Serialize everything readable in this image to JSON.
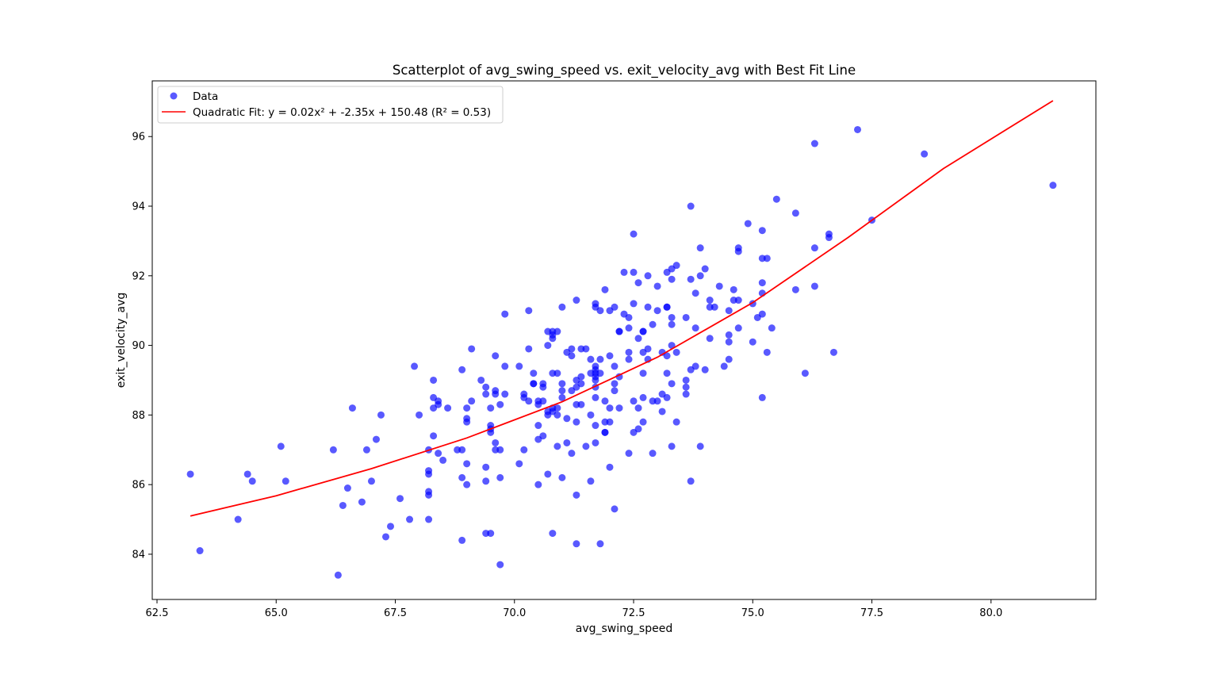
{
  "chart_data": {
    "type": "scatter",
    "title": "Scatterplot of avg_swing_speed vs. exit_velocity_avg with Best Fit Line",
    "xlabel": "avg_swing_speed",
    "ylabel": "exit_velocity_avg",
    "xlim": [
      62.4,
      82.2
    ],
    "ylim": [
      82.7,
      97.6
    ],
    "xticks": [
      62.5,
      65.0,
      67.5,
      70.0,
      72.5,
      75.0,
      77.5,
      80.0
    ],
    "xtick_labels": [
      "62.5",
      "65.0",
      "67.5",
      "70.0",
      "72.5",
      "75.0",
      "77.5",
      "80.0"
    ],
    "yticks": [
      84,
      86,
      88,
      90,
      92,
      94,
      96
    ],
    "ytick_labels": [
      "84",
      "86",
      "88",
      "90",
      "92",
      "94",
      "96"
    ],
    "grid": false,
    "legend": {
      "placement": "top-left",
      "entries": [
        {
          "label": "Data",
          "marker": "circle",
          "color": "#0000ff"
        },
        {
          "label": "Quadratic Fit: y = 0.02x² + -2.35x + 150.48 (R² = 0.53)",
          "marker": "line",
          "color": "#ff0000"
        }
      ]
    },
    "series": [
      {
        "name": "Data",
        "kind": "scatter",
        "color": "#0000ff",
        "alpha": 0.65,
        "points": [
          [
            63.2,
            86.3
          ],
          [
            63.4,
            84.1
          ],
          [
            64.2,
            85.0
          ],
          [
            64.4,
            86.3
          ],
          [
            64.5,
            86.1
          ],
          [
            65.1,
            87.1
          ],
          [
            65.2,
            86.1
          ],
          [
            66.2,
            87.0
          ],
          [
            66.3,
            83.4
          ],
          [
            66.4,
            85.4
          ],
          [
            66.5,
            85.9
          ],
          [
            66.6,
            88.2
          ],
          [
            66.8,
            85.5
          ],
          [
            66.9,
            87.0
          ],
          [
            67.0,
            86.1
          ],
          [
            67.1,
            87.3
          ],
          [
            67.2,
            88.0
          ],
          [
            67.3,
            84.5
          ],
          [
            67.4,
            84.8
          ],
          [
            67.6,
            85.6
          ],
          [
            67.8,
            85.0
          ],
          [
            67.9,
            89.4
          ],
          [
            68.0,
            88.0
          ],
          [
            68.2,
            87.0
          ],
          [
            68.2,
            86.4
          ],
          [
            68.2,
            86.3
          ],
          [
            68.2,
            85.8
          ],
          [
            68.2,
            85.7
          ],
          [
            68.2,
            85.0
          ],
          [
            68.3,
            89.0
          ],
          [
            68.3,
            88.5
          ],
          [
            68.3,
            88.2
          ],
          [
            68.3,
            87.4
          ],
          [
            68.4,
            88.4
          ],
          [
            68.4,
            88.3
          ],
          [
            68.4,
            86.9
          ],
          [
            68.5,
            86.7
          ],
          [
            68.6,
            88.2
          ],
          [
            68.8,
            87.0
          ],
          [
            68.9,
            89.3
          ],
          [
            68.9,
            87.0
          ],
          [
            68.9,
            86.2
          ],
          [
            68.9,
            84.4
          ],
          [
            69.0,
            88.2
          ],
          [
            69.0,
            87.9
          ],
          [
            69.0,
            87.8
          ],
          [
            69.0,
            86.6
          ],
          [
            69.0,
            86.0
          ],
          [
            69.1,
            89.9
          ],
          [
            69.1,
            88.4
          ],
          [
            69.3,
            89.0
          ],
          [
            69.4,
            88.8
          ],
          [
            69.4,
            88.6
          ],
          [
            69.4,
            86.5
          ],
          [
            69.4,
            86.1
          ],
          [
            69.4,
            84.6
          ],
          [
            69.5,
            88.2
          ],
          [
            69.5,
            87.7
          ],
          [
            69.5,
            87.6
          ],
          [
            69.5,
            87.5
          ],
          [
            69.5,
            84.6
          ],
          [
            69.6,
            89.7
          ],
          [
            69.6,
            88.7
          ],
          [
            69.6,
            88.6
          ],
          [
            69.6,
            87.2
          ],
          [
            69.6,
            87.0
          ],
          [
            69.7,
            88.3
          ],
          [
            69.7,
            87.0
          ],
          [
            69.7,
            86.2
          ],
          [
            69.7,
            83.7
          ],
          [
            69.8,
            90.9
          ],
          [
            69.8,
            89.4
          ],
          [
            69.8,
            88.6
          ],
          [
            70.1,
            89.4
          ],
          [
            70.1,
            86.6
          ],
          [
            70.2,
            88.6
          ],
          [
            70.2,
            88.5
          ],
          [
            70.2,
            87.0
          ],
          [
            70.3,
            91.0
          ],
          [
            70.3,
            89.9
          ],
          [
            70.3,
            88.4
          ],
          [
            70.4,
            89.2
          ],
          [
            70.4,
            88.9
          ],
          [
            70.4,
            88.9
          ],
          [
            70.5,
            88.4
          ],
          [
            70.5,
            88.3
          ],
          [
            70.5,
            87.7
          ],
          [
            70.5,
            87.3
          ],
          [
            70.5,
            86.0
          ],
          [
            70.6,
            88.9
          ],
          [
            70.6,
            88.8
          ],
          [
            70.6,
            88.4
          ],
          [
            70.6,
            87.4
          ],
          [
            70.7,
            90.4
          ],
          [
            70.7,
            90.0
          ],
          [
            70.7,
            88.1
          ],
          [
            70.7,
            88.0
          ],
          [
            70.7,
            86.3
          ],
          [
            70.8,
            90.4
          ],
          [
            70.8,
            90.3
          ],
          [
            70.8,
            90.2
          ],
          [
            70.8,
            89.2
          ],
          [
            70.8,
            88.2
          ],
          [
            70.8,
            88.1
          ],
          [
            70.8,
            84.6
          ],
          [
            70.9,
            90.4
          ],
          [
            70.9,
            89.2
          ],
          [
            70.9,
            88.2
          ],
          [
            70.9,
            88.0
          ],
          [
            70.9,
            87.1
          ],
          [
            71.0,
            91.1
          ],
          [
            71.0,
            88.9
          ],
          [
            71.0,
            88.7
          ],
          [
            71.0,
            88.5
          ],
          [
            71.0,
            86.2
          ],
          [
            71.1,
            89.8
          ],
          [
            71.1,
            87.9
          ],
          [
            71.1,
            87.2
          ],
          [
            71.2,
            89.9
          ],
          [
            71.2,
            89.7
          ],
          [
            71.2,
            88.7
          ],
          [
            71.2,
            86.9
          ],
          [
            71.3,
            91.3
          ],
          [
            71.3,
            89.0
          ],
          [
            71.3,
            88.8
          ],
          [
            71.3,
            88.3
          ],
          [
            71.3,
            87.8
          ],
          [
            71.3,
            85.7
          ],
          [
            71.3,
            84.3
          ],
          [
            71.4,
            89.9
          ],
          [
            71.4,
            89.1
          ],
          [
            71.4,
            88.9
          ],
          [
            71.4,
            88.3
          ],
          [
            71.5,
            89.9
          ],
          [
            71.5,
            87.1
          ],
          [
            71.6,
            89.6
          ],
          [
            71.6,
            89.2
          ],
          [
            71.6,
            88.0
          ],
          [
            71.6,
            86.1
          ],
          [
            71.7,
            91.2
          ],
          [
            71.7,
            91.1
          ],
          [
            71.7,
            89.4
          ],
          [
            71.7,
            89.3
          ],
          [
            71.7,
            89.2
          ],
          [
            71.7,
            89.1
          ],
          [
            71.7,
            89.0
          ],
          [
            71.7,
            88.8
          ],
          [
            71.7,
            88.5
          ],
          [
            71.7,
            87.7
          ],
          [
            71.7,
            87.2
          ],
          [
            71.8,
            91.0
          ],
          [
            71.8,
            89.6
          ],
          [
            71.8,
            89.2
          ],
          [
            71.8,
            84.3
          ],
          [
            71.9,
            91.6
          ],
          [
            71.9,
            88.4
          ],
          [
            71.9,
            87.8
          ],
          [
            71.9,
            87.5
          ],
          [
            71.9,
            87.5
          ],
          [
            72.0,
            91.0
          ],
          [
            72.0,
            89.7
          ],
          [
            72.0,
            88.2
          ],
          [
            72.0,
            87.8
          ],
          [
            72.0,
            86.5
          ],
          [
            72.1,
            91.1
          ],
          [
            72.1,
            89.4
          ],
          [
            72.1,
            88.9
          ],
          [
            72.1,
            88.7
          ],
          [
            72.1,
            85.3
          ],
          [
            72.2,
            90.4
          ],
          [
            72.2,
            90.4
          ],
          [
            72.2,
            89.1
          ],
          [
            72.2,
            88.2
          ],
          [
            72.3,
            92.1
          ],
          [
            72.3,
            90.9
          ],
          [
            72.4,
            90.8
          ],
          [
            72.4,
            90.5
          ],
          [
            72.4,
            89.8
          ],
          [
            72.4,
            89.6
          ],
          [
            72.4,
            86.9
          ],
          [
            72.5,
            93.2
          ],
          [
            72.5,
            92.1
          ],
          [
            72.5,
            91.2
          ],
          [
            72.5,
            88.4
          ],
          [
            72.5,
            87.5
          ],
          [
            72.6,
            91.8
          ],
          [
            72.6,
            90.2
          ],
          [
            72.6,
            88.2
          ],
          [
            72.6,
            87.6
          ],
          [
            72.7,
            90.4
          ],
          [
            72.7,
            90.4
          ],
          [
            72.7,
            89.8
          ],
          [
            72.7,
            89.2
          ],
          [
            72.7,
            88.5
          ],
          [
            72.7,
            87.8
          ],
          [
            72.8,
            92.0
          ],
          [
            72.8,
            91.1
          ],
          [
            72.8,
            89.9
          ],
          [
            72.8,
            89.6
          ],
          [
            72.9,
            90.6
          ],
          [
            72.9,
            88.4
          ],
          [
            72.9,
            86.9
          ],
          [
            73.0,
            91.7
          ],
          [
            73.0,
            91.0
          ],
          [
            73.0,
            88.4
          ],
          [
            73.1,
            89.8
          ],
          [
            73.1,
            88.6
          ],
          [
            73.1,
            88.1
          ],
          [
            73.2,
            92.1
          ],
          [
            73.2,
            91.1
          ],
          [
            73.2,
            91.1
          ],
          [
            73.2,
            89.7
          ],
          [
            73.2,
            89.2
          ],
          [
            73.2,
            88.5
          ],
          [
            73.3,
            92.2
          ],
          [
            73.3,
            91.9
          ],
          [
            73.3,
            90.8
          ],
          [
            73.3,
            90.6
          ],
          [
            73.3,
            90.0
          ],
          [
            73.3,
            88.9
          ],
          [
            73.3,
            87.1
          ],
          [
            73.4,
            92.3
          ],
          [
            73.4,
            89.8
          ],
          [
            73.4,
            87.8
          ],
          [
            73.6,
            90.8
          ],
          [
            73.6,
            89.0
          ],
          [
            73.6,
            88.8
          ],
          [
            73.6,
            88.6
          ],
          [
            73.7,
            94.0
          ],
          [
            73.7,
            91.9
          ],
          [
            73.7,
            89.3
          ],
          [
            73.7,
            86.1
          ],
          [
            73.8,
            91.5
          ],
          [
            73.8,
            90.5
          ],
          [
            73.8,
            89.4
          ],
          [
            73.9,
            92.8
          ],
          [
            73.9,
            92.0
          ],
          [
            73.9,
            87.1
          ],
          [
            74.0,
            92.2
          ],
          [
            74.0,
            89.3
          ],
          [
            74.1,
            91.3
          ],
          [
            74.1,
            91.1
          ],
          [
            74.1,
            90.2
          ],
          [
            74.2,
            91.1
          ],
          [
            74.3,
            91.7
          ],
          [
            74.4,
            89.4
          ],
          [
            74.5,
            91.0
          ],
          [
            74.5,
            90.3
          ],
          [
            74.5,
            90.1
          ],
          [
            74.5,
            89.6
          ],
          [
            74.6,
            91.6
          ],
          [
            74.6,
            91.3
          ],
          [
            74.7,
            92.8
          ],
          [
            74.7,
            92.7
          ],
          [
            74.7,
            91.3
          ],
          [
            74.7,
            90.5
          ],
          [
            74.9,
            93.5
          ],
          [
            75.0,
            91.2
          ],
          [
            75.0,
            90.1
          ],
          [
            75.1,
            90.8
          ],
          [
            75.2,
            93.3
          ],
          [
            75.2,
            92.5
          ],
          [
            75.2,
            91.8
          ],
          [
            75.2,
            91.5
          ],
          [
            75.2,
            90.9
          ],
          [
            75.2,
            88.5
          ],
          [
            75.3,
            92.5
          ],
          [
            75.3,
            89.8
          ],
          [
            75.4,
            90.5
          ],
          [
            75.5,
            94.2
          ],
          [
            75.9,
            93.8
          ],
          [
            75.9,
            91.6
          ],
          [
            76.1,
            89.2
          ],
          [
            76.3,
            95.8
          ],
          [
            76.3,
            92.8
          ],
          [
            76.3,
            91.7
          ],
          [
            76.6,
            93.2
          ],
          [
            76.6,
            93.1
          ],
          [
            76.7,
            89.8
          ],
          [
            77.2,
            96.2
          ],
          [
            77.5,
            93.6
          ],
          [
            78.6,
            95.5
          ],
          [
            81.3,
            94.6
          ]
        ]
      },
      {
        "name": "Quadratic Fit: y = 0.02x² + -2.35x + 150.48 (R² = 0.53)",
        "kind": "line",
        "color": "#ff0000",
        "x_range": [
          63.2,
          81.3
        ],
        "points": [
          [
            63.2,
            85.1
          ],
          [
            65.0,
            85.68
          ],
          [
            67.0,
            86.46
          ],
          [
            69.0,
            87.34
          ],
          [
            71.0,
            88.38
          ],
          [
            73.0,
            89.66
          ],
          [
            75.0,
            91.23
          ],
          [
            77.0,
            93.1
          ],
          [
            79.0,
            95.08
          ],
          [
            81.3,
            97.03
          ]
        ]
      }
    ]
  }
}
